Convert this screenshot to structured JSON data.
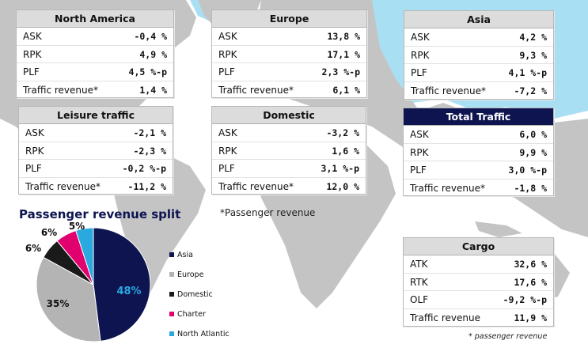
{
  "panels": {
    "north_america": {
      "title": "North America",
      "rows": [
        {
          "label": "ASK",
          "value": "-0,4 %"
        },
        {
          "label": "RPK",
          "value": "4,9 %"
        },
        {
          "label": "PLF",
          "value": "4,5 %-p"
        },
        {
          "label": "Traffic revenue*",
          "value": "1,4 %"
        }
      ]
    },
    "europe": {
      "title": "Europe",
      "rows": [
        {
          "label": "ASK",
          "value": "13,8 %"
        },
        {
          "label": "RPK",
          "value": "17,1 %"
        },
        {
          "label": "PLF",
          "value": "2,3 %-p"
        },
        {
          "label": "Traffic revenue*",
          "value": "6,1 %"
        }
      ]
    },
    "asia": {
      "title": "Asia",
      "rows": [
        {
          "label": "ASK",
          "value": "4,2 %"
        },
        {
          "label": "RPK",
          "value": "9,3 %"
        },
        {
          "label": "PLF",
          "value": "4,1 %-p"
        },
        {
          "label": "Traffic revenue*",
          "value": "-7,2 %"
        }
      ]
    },
    "leisure": {
      "title": "Leisure traffic",
      "rows": [
        {
          "label": "ASK",
          "value": "-2,1 %"
        },
        {
          "label": "RPK",
          "value": "-2,3 %"
        },
        {
          "label": "PLF",
          "value": "-0,2 %-p"
        },
        {
          "label": "Traffic revenue*",
          "value": "-11,2 %"
        }
      ]
    },
    "domestic": {
      "title": "Domestic",
      "rows": [
        {
          "label": "ASK",
          "value": "-3,2 %"
        },
        {
          "label": "RPK",
          "value": "1,6 %"
        },
        {
          "label": "PLF",
          "value": "3,1 %-p"
        },
        {
          "label": "Traffic revenue*",
          "value": "12,0 %"
        }
      ]
    },
    "total": {
      "title": "Total Traffic",
      "rows": [
        {
          "label": "ASK",
          "value": "6,0 %"
        },
        {
          "label": "RPK",
          "value": "9,9 %"
        },
        {
          "label": "PLF",
          "value": "3,0 %-p"
        },
        {
          "label": "Traffic revenue*",
          "value": "-1,8 %"
        }
      ]
    },
    "cargo": {
      "title": "Cargo",
      "rows": [
        {
          "label": "ATK",
          "value": "32,6 %"
        },
        {
          "label": "RTK",
          "value": "17,6 %"
        },
        {
          "label": "OLF",
          "value": "-9,2 %-p"
        },
        {
          "label": "Traffic revenue",
          "value": "11,9 %"
        }
      ]
    }
  },
  "notes": {
    "passenger_revenue": "*Passenger revenue",
    "passenger_revenue_small": "* passenger revenue"
  },
  "colors": {
    "header_dark": "#0d1450",
    "map_land": "#c4c4c4",
    "map_sea": "#a9dff3"
  },
  "chart_data": {
    "type": "pie",
    "title": "Passenger revenue split",
    "categories": [
      "Asia",
      "Europe",
      "Domestic",
      "Charter",
      "North Atlantic"
    ],
    "values": [
      48,
      35,
      6,
      6,
      5
    ],
    "labels": [
      "48%",
      "35%",
      "6%",
      "6%",
      "5%"
    ],
    "colors": [
      "#0d1450",
      "#b4b4b4",
      "#1a1a1a",
      "#e0006e",
      "#2aa8e0"
    ],
    "legend_position": "right"
  }
}
